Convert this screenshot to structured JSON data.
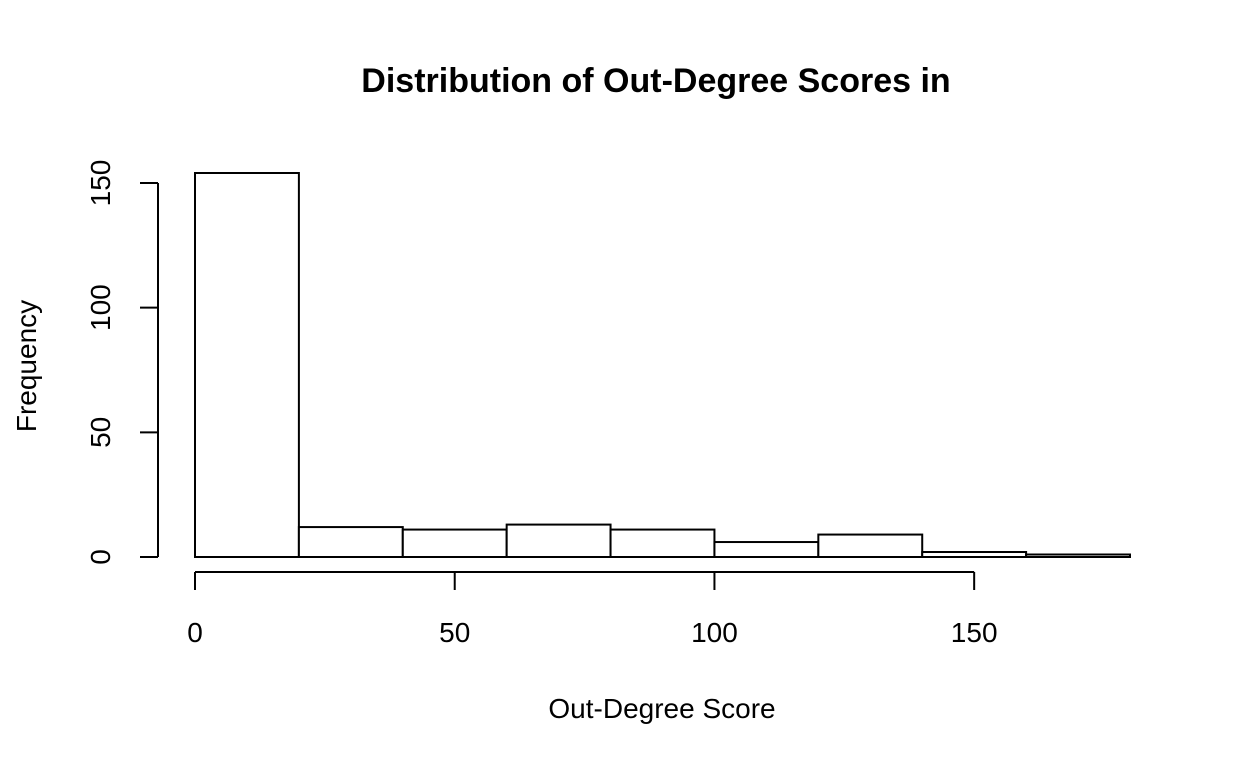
{
  "chart_data": {
    "type": "bar",
    "title": "Distribution of Out-Degree Scores in",
    "xlabel": "Out-Degree Score",
    "ylabel": "Frequency",
    "bin_edges": [
      0,
      20,
      40,
      60,
      80,
      100,
      120,
      140,
      160,
      180
    ],
    "values": [
      154,
      12,
      11,
      13,
      11,
      6,
      9,
      2,
      1
    ],
    "xlim": [
      0,
      180
    ],
    "ylim": [
      0,
      154
    ],
    "x_ticks": [
      0,
      50,
      100,
      150
    ],
    "x_tick_labels": [
      "0",
      "50",
      "100",
      "150"
    ],
    "y_ticks": [
      0,
      50,
      100,
      150
    ],
    "y_tick_labels": [
      "0",
      "50",
      "100",
      "150"
    ],
    "grid": false,
    "legend": "none"
  }
}
